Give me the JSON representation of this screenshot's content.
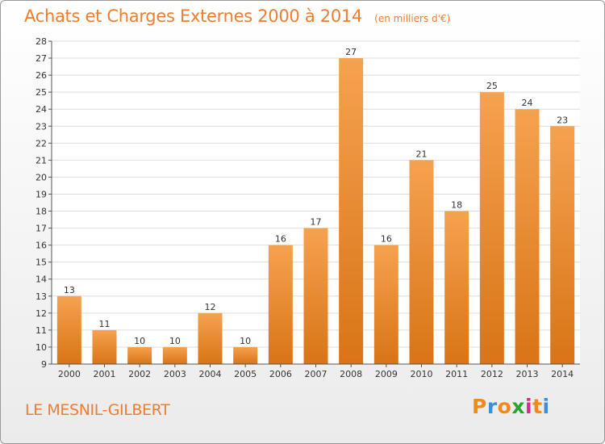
{
  "header": {
    "title": "Achats et Charges Externes 2000 à 2014",
    "subtitle": "(en milliers d'€)"
  },
  "footer": {
    "commune": "LE MESNIL-GILBERT",
    "logo_text": "Proxiti",
    "logo_colors": [
      "#f08a1c",
      "#3a8fd8",
      "#f08a1c",
      "#2aa62a",
      "#d62c8a",
      "#f08a1c",
      "#3a8fd8"
    ]
  },
  "colors": {
    "accent": "#ee7d2f",
    "bar_light": "#f5a24f",
    "bar_dark": "#d97417",
    "grid": "#dddddd",
    "axis": "#555555"
  },
  "chart_data": {
    "type": "bar",
    "title": "Achats et Charges Externes 2000 à 2014",
    "subtitle": "(en milliers d'€)",
    "xlabel": "",
    "ylabel": "",
    "categories": [
      "2000",
      "2001",
      "2002",
      "2003",
      "2004",
      "2005",
      "2006",
      "2007",
      "2008",
      "2009",
      "2010",
      "2011",
      "2012",
      "2013",
      "2014"
    ],
    "values": [
      13,
      11,
      10,
      10,
      12,
      10,
      16,
      17,
      27,
      16,
      21,
      18,
      25,
      24,
      23
    ],
    "ylim": [
      9,
      28
    ],
    "yticks": [
      9,
      10,
      11,
      12,
      13,
      14,
      15,
      16,
      17,
      18,
      19,
      20,
      21,
      22,
      23,
      24,
      25,
      26,
      27,
      28
    ],
    "grid": true,
    "legend": "none",
    "data_labels": true
  }
}
